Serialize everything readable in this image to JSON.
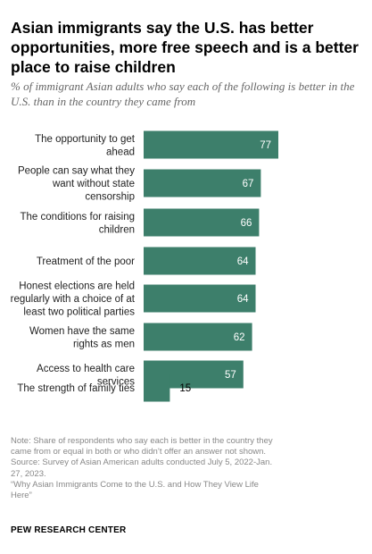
{
  "title": "Asian immigrants say the U.S. has better opportunities, more free speech and is a better place to raise children",
  "subtitle": "% of immigrant Asian adults who say each of the following is better in the U.S. than in the country they came from",
  "chart_data": {
    "type": "bar",
    "orientation": "horizontal",
    "categories": [
      [
        "The opportunity to get",
        "ahead"
      ],
      [
        "People can say what they",
        "want without state",
        "censorship"
      ],
      [
        "The conditions for raising",
        "children"
      ],
      [
        "Treatment of the poor"
      ],
      [
        "Honest elections are held",
        "regularly with a choice of at",
        "least two political parties"
      ],
      [
        "Women have the same",
        "rights as men"
      ],
      [
        "Access to health care",
        "services"
      ],
      [
        "The strength of family ties"
      ]
    ],
    "values": [
      77,
      67,
      66,
      64,
      64,
      62,
      57,
      15
    ],
    "xlim": [
      0,
      77
    ],
    "grid": false,
    "legend": "none",
    "bar_color": "#3d7f6b",
    "value_label_inside_color": "#ffffff",
    "value_label_outside_color": "#000000"
  },
  "notes": [
    "Note: Share of respondents who say each is better in the country they came from or equal in both or who didn’t offer an answer not shown.",
    "Source: Survey of Asian American adults conducted July 5, 2022-Jan. 27, 2023.",
    "“Why Asian Immigrants Come to the U.S. and How They View Life Here”"
  ],
  "brand": "PEW RESEARCH CENTER"
}
